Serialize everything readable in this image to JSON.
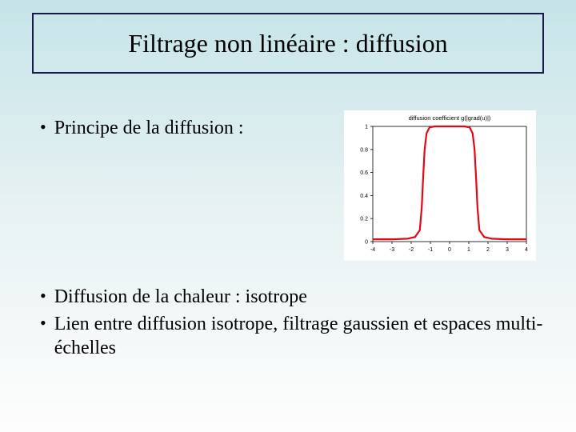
{
  "slide": {
    "title": "Filtrage non linéaire : diffusion",
    "bullets": [
      "Principe de la diffusion :",
      "Diffusion de la chaleur : isotrope",
      "Lien entre diffusion isotrope, filtrage gaussien et espaces multi-échelles"
    ]
  },
  "chart": {
    "type": "line",
    "title": "diffusion coefficient g(|grad(u)|)",
    "xlim": [
      -4,
      4
    ],
    "ylim": [
      0,
      1
    ],
    "xtick_step": 1,
    "ytick_step": 0.2,
    "xticks": [
      -4,
      -3,
      -2,
      -1,
      0,
      1,
      2,
      3,
      4
    ],
    "yticks": [
      0,
      0.2,
      0.4,
      0.6,
      0.8,
      1
    ],
    "background_color": "#ffffff",
    "axis_color": "#000000",
    "label_fontsize": 7,
    "curve_color": "#e30613",
    "curve_width": 2.2,
    "curve_points": [
      [
        -4.0,
        0.02
      ],
      [
        -3.0,
        0.02
      ],
      [
        -2.2,
        0.025
      ],
      [
        -1.8,
        0.04
      ],
      [
        -1.55,
        0.1
      ],
      [
        -1.45,
        0.3
      ],
      [
        -1.38,
        0.55
      ],
      [
        -1.3,
        0.8
      ],
      [
        -1.2,
        0.94
      ],
      [
        -1.05,
        0.99
      ],
      [
        -0.8,
        1.0
      ],
      [
        0.0,
        1.0
      ],
      [
        0.8,
        1.0
      ],
      [
        1.05,
        0.99
      ],
      [
        1.2,
        0.94
      ],
      [
        1.3,
        0.8
      ],
      [
        1.38,
        0.55
      ],
      [
        1.45,
        0.3
      ],
      [
        1.55,
        0.1
      ],
      [
        1.8,
        0.04
      ],
      [
        2.2,
        0.025
      ],
      [
        3.0,
        0.02
      ],
      [
        4.0,
        0.02
      ]
    ]
  }
}
